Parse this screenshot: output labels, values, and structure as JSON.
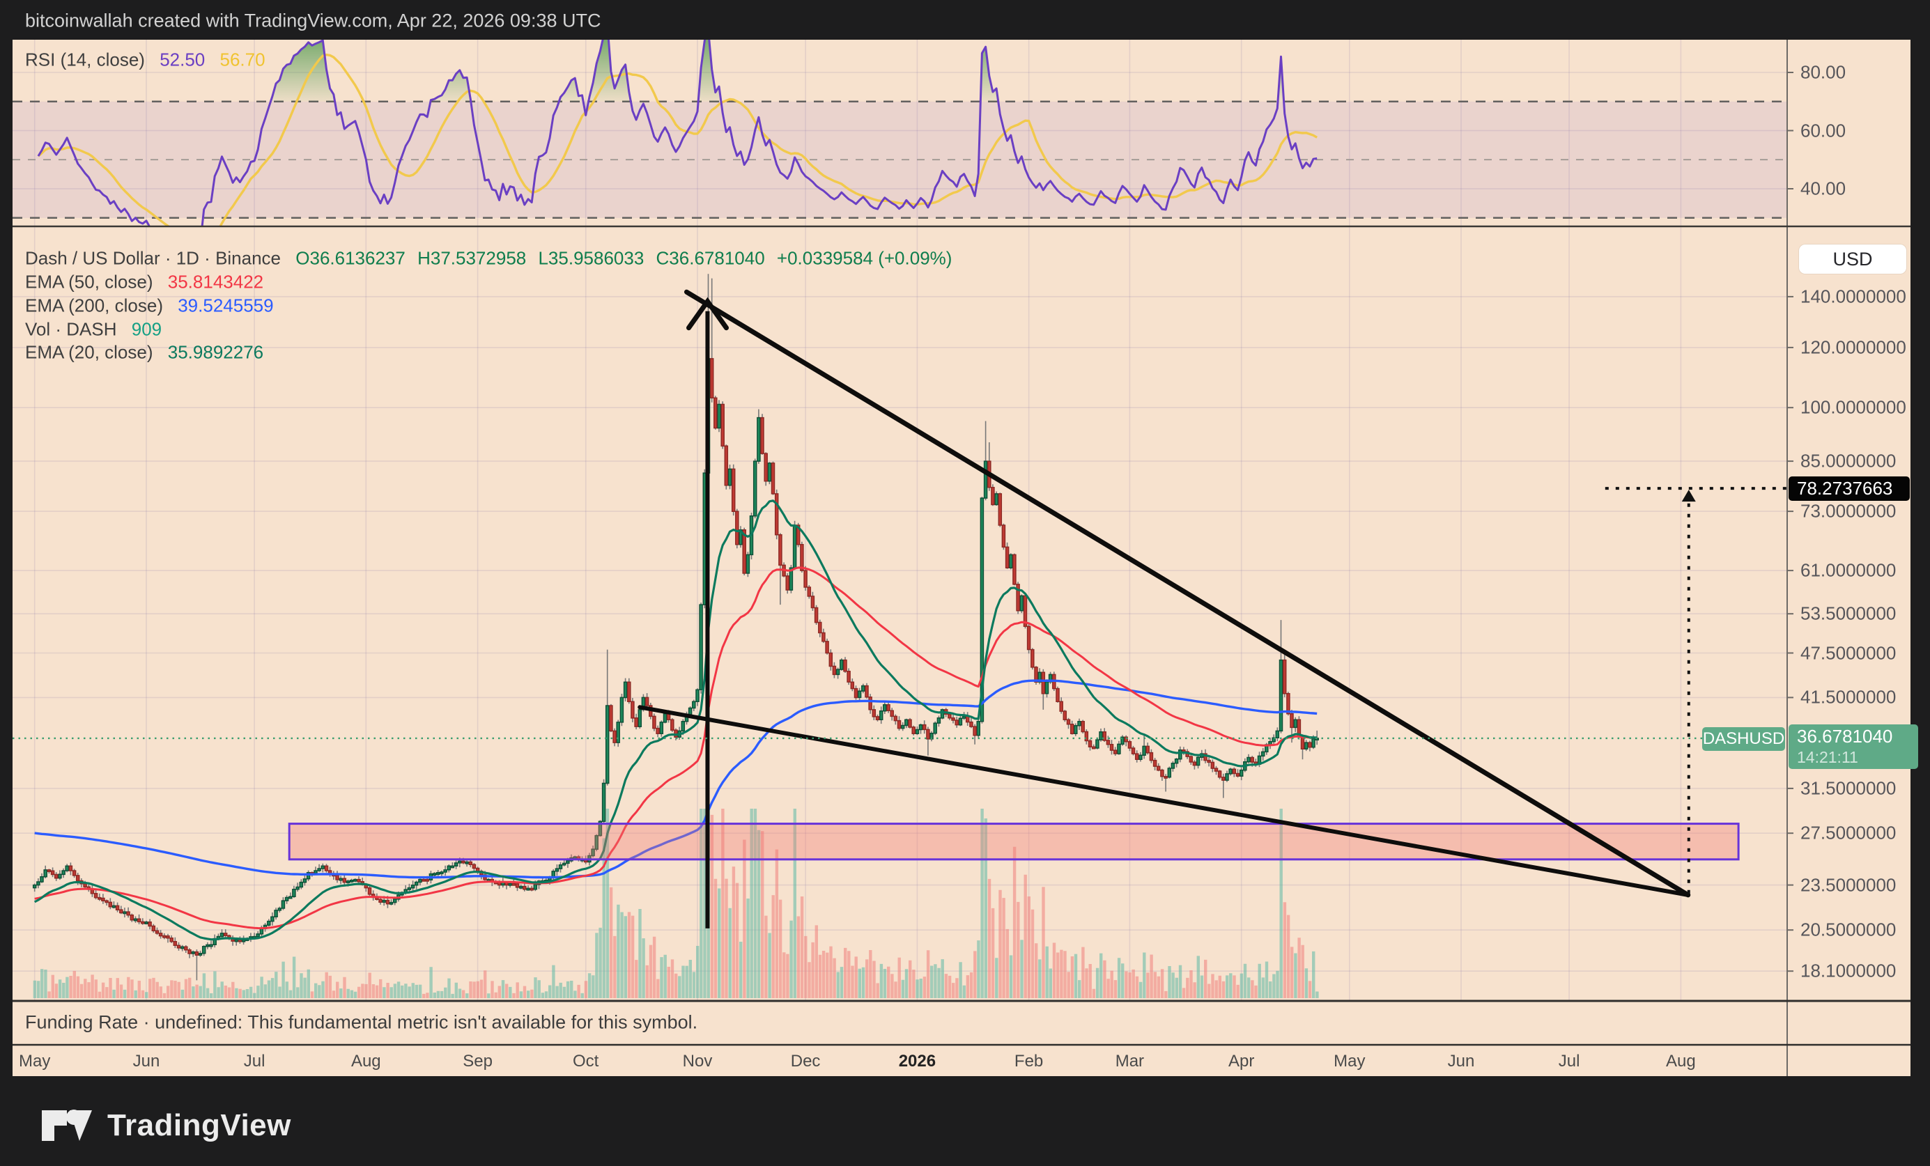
{
  "top_bar": {
    "text": "bitcoinwallah created with TradingView.com, Apr 22, 2026 09:38 UTC"
  },
  "rsi_panel": {
    "legend_label": "RSI (14, close)",
    "rsi_value": "52.50",
    "rsi_ma_value": "56.70",
    "axis_labels": [
      {
        "text": "80.00",
        "rsi": 80
      },
      {
        "text": "60.00",
        "rsi": 60
      },
      {
        "text": "40.00",
        "rsi": 40
      }
    ],
    "band": {
      "upper": 70,
      "middle": 50,
      "lower": 30
    }
  },
  "main_panel": {
    "title": "Dash / US Dollar · 1D · Binance",
    "ohlc": {
      "o": "O36.6136237",
      "h": "H37.5372958",
      "l": "L35.9586033",
      "c": "C36.6781040",
      "change": "+0.0339584 (+0.09%)"
    },
    "indicators": [
      {
        "label": "EMA (50, close)",
        "value": "35.8143422"
      },
      {
        "label": "EMA (200, close)",
        "value": "39.5245559"
      },
      {
        "label": "Vol · DASH",
        "value": "909"
      },
      {
        "label": "EMA (20, close)",
        "value": "35.9892276"
      }
    ],
    "currency_button": "USD",
    "price_axis": [
      {
        "text": "140.0000000",
        "price": 140
      },
      {
        "text": "120.0000000",
        "price": 120
      },
      {
        "text": "100.0000000",
        "price": 100
      },
      {
        "text": "85.0000000",
        "price": 85
      },
      {
        "text": "73.0000000",
        "price": 73
      },
      {
        "text": "61.0000000",
        "price": 61
      },
      {
        "text": "53.5000000",
        "price": 53.5
      },
      {
        "text": "47.5000000",
        "price": 47.5
      },
      {
        "text": "41.5000000",
        "price": 41.5
      },
      {
        "text": "31.5000000",
        "price": 31.5
      },
      {
        "text": "27.5000000",
        "price": 27.5
      },
      {
        "text": "23.5000000",
        "price": 23.5
      },
      {
        "text": "20.5000000",
        "price": 20.5
      },
      {
        "text": "18.1000000",
        "price": 18.1
      }
    ],
    "target_badge": {
      "text": "78.2737663",
      "price": 78.2737663
    },
    "price_badge": {
      "symbol": "DASHUSD",
      "price_text": "36.6781040",
      "countdown": "14:21:11",
      "price": 36.678104
    }
  },
  "funding_panel": {
    "text": "Funding Rate · undefined: This fundamental metric isn't available for this symbol."
  },
  "time_axis": {
    "labels": [
      {
        "text": "May",
        "day": 0
      },
      {
        "text": "Jun",
        "day": 31
      },
      {
        "text": "Jul",
        "day": 61
      },
      {
        "text": "Aug",
        "day": 92
      },
      {
        "text": "Sep",
        "day": 123
      },
      {
        "text": "Oct",
        "day": 153
      },
      {
        "text": "Nov",
        "day": 184
      },
      {
        "text": "Dec",
        "day": 214
      },
      {
        "text": "2026",
        "day": 245,
        "year": true
      },
      {
        "text": "Feb",
        "day": 276
      },
      {
        "text": "Mar",
        "day": 304
      },
      {
        "text": "Apr",
        "day": 335
      },
      {
        "text": "May",
        "day": 365
      },
      {
        "text": "Jun",
        "day": 396
      },
      {
        "text": "Jul",
        "day": 426
      },
      {
        "text": "Aug",
        "day": 457
      }
    ]
  },
  "footer": {
    "brand": "TradingView"
  },
  "colors": {
    "bg_dark": "#1d1d1e",
    "bg_chart": "#f7e2ce",
    "grid": "rgba(140,120,170,0.18)",
    "candle_up": "#1f8a5d",
    "candle_up_border": "#0e5138",
    "candle_down": "#c23b34",
    "candle_down_border": "#8e2a25",
    "wick": "#787878",
    "vol_up": "rgba(94,186,165,0.55)",
    "vol_down": "rgba(240,128,124,0.55)",
    "ema20": "#0c7a5e",
    "ema50": "#f23645",
    "ema200": "#2b5cff",
    "rsi_line": "#6a3fc3",
    "rsi_ma": "#f2c94c",
    "rsi_band": "rgba(106,63,195,0.09)",
    "overbought_fill": "rgba(76,160,96,0.5)",
    "ohlc_text": "#0f7d4d",
    "label_text": "#3f3f3f",
    "badge_green": "#5faa87",
    "badge_black": "#050505",
    "zone_fill": "rgba(242,120,116,0.35)",
    "zone_border": "#6733d9",
    "trend": "#0e0d0c",
    "price_dotted": "#3a9d6e"
  },
  "chart_data": {
    "type": "candlestick",
    "symbol": "DASHUSD",
    "exchange": "Binance",
    "timeframe": "1D",
    "scale": "log",
    "start_date": "2025-05-01",
    "current_price": 36.678104,
    "target_price": 78.2737663,
    "last_candle": {
      "o": 36.6136237,
      "h": 37.5372958,
      "l": 35.9586033,
      "c": 36.678104
    },
    "ema": {
      "ema20": 35.9892276,
      "ema50": 35.8143422,
      "ema200": 39.5245559
    },
    "rsi": {
      "value": 52.5,
      "ma": 56.7
    },
    "volume_last": 909,
    "first_open": 23.3,
    "support_zone": {
      "price_top": 28.3,
      "price_bottom": 25.4,
      "day_start": 70.7,
      "day_end": 473
    },
    "trendlines": {
      "upper": {
        "d1": 181,
        "p1": 142,
        "d2": 459,
        "p2": 22.8
      },
      "lower": {
        "d1": 168,
        "p1": 40.3,
        "d2": 459,
        "p2": 22.8
      }
    },
    "arrow_up": {
      "day": 186.8,
      "p_from": 20.6,
      "p_to": 138
    },
    "target_lines": {
      "vline_day": 459.2,
      "hline_day_start": 436,
      "p_from": 22.9,
      "p_to": 78.2737663
    },
    "waypoints": [
      [
        0,
        23.5,
        null,
        null
      ],
      [
        3,
        24.6,
        null,
        null
      ],
      [
        6,
        24.0,
        null,
        null
      ],
      [
        9,
        24.9,
        null,
        null
      ],
      [
        12,
        23.8,
        null,
        null
      ],
      [
        16,
        22.9,
        null,
        null
      ],
      [
        20,
        22.3,
        null,
        null
      ],
      [
        24,
        21.6,
        null,
        null
      ],
      [
        28,
        21.2,
        null,
        null
      ],
      [
        31,
        21.0,
        null,
        null
      ],
      [
        34,
        20.3,
        null,
        null
      ],
      [
        38,
        19.8,
        null,
        null
      ],
      [
        42,
        19.3,
        null,
        null
      ],
      [
        45,
        19.0,
        null,
        17.6
      ],
      [
        48,
        19.6,
        null,
        null
      ],
      [
        52,
        20.3,
        null,
        null
      ],
      [
        56,
        19.9,
        null,
        null
      ],
      [
        61,
        20.1,
        null,
        null
      ],
      [
        64,
        20.8,
        null,
        null
      ],
      [
        68,
        21.9,
        null,
        null
      ],
      [
        72,
        23.2,
        null,
        null
      ],
      [
        76,
        24.4,
        null,
        null
      ],
      [
        80,
        24.9,
        null,
        null
      ],
      [
        83,
        24.2,
        null,
        null
      ],
      [
        86,
        23.7,
        null,
        null
      ],
      [
        89,
        23.9,
        null,
        null
      ],
      [
        92,
        23.3,
        null,
        null
      ],
      [
        95,
        22.5,
        null,
        null
      ],
      [
        98,
        22.2,
        null,
        null
      ],
      [
        101,
        22.8,
        null,
        null
      ],
      [
        104,
        23.3,
        null,
        null
      ],
      [
        108,
        23.9,
        null,
        null
      ],
      [
        112,
        24.4,
        null,
        null
      ],
      [
        116,
        24.9,
        null,
        null
      ],
      [
        120,
        25.2,
        null,
        null
      ],
      [
        123,
        24.5,
        null,
        null
      ],
      [
        126,
        23.9,
        null,
        null
      ],
      [
        129,
        23.5,
        null,
        null
      ],
      [
        132,
        23.6,
        null,
        null
      ],
      [
        135,
        23.4,
        null,
        null
      ],
      [
        138,
        23.2,
        null,
        null
      ],
      [
        141,
        23.8,
        null,
        null
      ],
      [
        144,
        24.5,
        null,
        null
      ],
      [
        147,
        25.1,
        null,
        null
      ],
      [
        150,
        25.6,
        null,
        null
      ],
      [
        153,
        25.2,
        null,
        null
      ],
      [
        155,
        26.2,
        null,
        null
      ],
      [
        157,
        28.5,
        null,
        null
      ],
      [
        158,
        32.0,
        null,
        null
      ],
      [
        159,
        40.5,
        48,
        null
      ],
      [
        160,
        37.5,
        null,
        null
      ],
      [
        161,
        36.2,
        null,
        null
      ],
      [
        162,
        38.5,
        null,
        null
      ],
      [
        163,
        41.5,
        null,
        null
      ],
      [
        164,
        43.5,
        null,
        null
      ],
      [
        165,
        41.0,
        null,
        null
      ],
      [
        166,
        39.0,
        null,
        null
      ],
      [
        167,
        38.0,
        null,
        null
      ],
      [
        168,
        40.0,
        null,
        null
      ],
      [
        169,
        41.5,
        null,
        null
      ],
      [
        170,
        40.5,
        null,
        null
      ],
      [
        171,
        39.2,
        null,
        null
      ],
      [
        172,
        37.8,
        null,
        null
      ],
      [
        173,
        37.2,
        null,
        null
      ],
      [
        174,
        38.5,
        null,
        null
      ],
      [
        175,
        39.5,
        null,
        null
      ],
      [
        176,
        38.8,
        null,
        null
      ],
      [
        177,
        37.6,
        null,
        null
      ],
      [
        178,
        36.8,
        null,
        null
      ],
      [
        179,
        37.5,
        null,
        null
      ],
      [
        180,
        38.6,
        null,
        null
      ],
      [
        181,
        39.4,
        null,
        null
      ],
      [
        182,
        40.2,
        null,
        null
      ],
      [
        183,
        41.0,
        null,
        null
      ],
      [
        184,
        42.5,
        null,
        null
      ],
      [
        185,
        55.0,
        null,
        null
      ],
      [
        186,
        82.0,
        null,
        null
      ],
      [
        187,
        116.0,
        150,
        null
      ],
      [
        188,
        103.0,
        148,
        null
      ],
      [
        189,
        94.0,
        null,
        null
      ],
      [
        190,
        101.0,
        null,
        null
      ],
      [
        191,
        89.0,
        null,
        null
      ],
      [
        192,
        79.0,
        null,
        null
      ],
      [
        193,
        83.0,
        null,
        null
      ],
      [
        194,
        73.0,
        null,
        null
      ],
      [
        195,
        66.0,
        null,
        null
      ],
      [
        196,
        69.0,
        null,
        null
      ],
      [
        197,
        60.5,
        null,
        null
      ],
      [
        198,
        64.0,
        null,
        null
      ],
      [
        199,
        72.0,
        null,
        null
      ],
      [
        200,
        85.0,
        null,
        null
      ],
      [
        201,
        97.0,
        99.5,
        null
      ],
      [
        202,
        87.0,
        null,
        null
      ],
      [
        203,
        80.0,
        null,
        null
      ],
      [
        204,
        84.5,
        null,
        null
      ],
      [
        205,
        77.0,
        null,
        null
      ],
      [
        206,
        68.0,
        null,
        null
      ],
      [
        207,
        62.0,
        null,
        55.0
      ],
      [
        208,
        60.0,
        null,
        null
      ],
      [
        209,
        57.5,
        null,
        null
      ],
      [
        210,
        61.5,
        null,
        null
      ],
      [
        211,
        70.0,
        null,
        null
      ],
      [
        212,
        66.0,
        null,
        null
      ],
      [
        213,
        61.0,
        null,
        null
      ],
      [
        214,
        58.0,
        null,
        null
      ],
      [
        216,
        54.5,
        null,
        null
      ],
      [
        218,
        50.5,
        null,
        null
      ],
      [
        220,
        47.5,
        null,
        null
      ],
      [
        222,
        44.5,
        null,
        null
      ],
      [
        224,
        46.5,
        null,
        null
      ],
      [
        226,
        43.5,
        null,
        null
      ],
      [
        228,
        41.5,
        null,
        null
      ],
      [
        230,
        43.0,
        null,
        null
      ],
      [
        232,
        40.0,
        null,
        null
      ],
      [
        234,
        38.8,
        null,
        null
      ],
      [
        236,
        40.6,
        null,
        null
      ],
      [
        238,
        39.2,
        null,
        null
      ],
      [
        240,
        37.8,
        null,
        null
      ],
      [
        242,
        38.8,
        null,
        null
      ],
      [
        244,
        37.2,
        null,
        null
      ],
      [
        246,
        38.2,
        null,
        null
      ],
      [
        248,
        36.6,
        null,
        34.8
      ],
      [
        250,
        38.4,
        null,
        null
      ],
      [
        252,
        40.0,
        null,
        null
      ],
      [
        254,
        39.0,
        null,
        null
      ],
      [
        256,
        38.2,
        null,
        null
      ],
      [
        258,
        39.2,
        null,
        null
      ],
      [
        260,
        38.0,
        null,
        null
      ],
      [
        261,
        37.0,
        null,
        36.0
      ],
      [
        262,
        38.6,
        null,
        null
      ],
      [
        263,
        76.0,
        null,
        null
      ],
      [
        264,
        85.0,
        96.0,
        null
      ],
      [
        265,
        78.5,
        90.0,
        null
      ],
      [
        266,
        74.5,
        null,
        null
      ],
      [
        267,
        77.0,
        null,
        null
      ],
      [
        268,
        70.0,
        null,
        null
      ],
      [
        269,
        65.5,
        null,
        null
      ],
      [
        270,
        61.5,
        null,
        null
      ],
      [
        271,
        64.0,
        null,
        null
      ],
      [
        272,
        58.5,
        null,
        null
      ],
      [
        273,
        54.0,
        null,
        null
      ],
      [
        274,
        56.5,
        null,
        null
      ],
      [
        275,
        51.5,
        null,
        null
      ],
      [
        276,
        48.0,
        null,
        null
      ],
      [
        277,
        45.5,
        null,
        null
      ],
      [
        278,
        43.5,
        null,
        null
      ],
      [
        279,
        44.8,
        null,
        null
      ],
      [
        280,
        42.0,
        null,
        40.0
      ],
      [
        282,
        44.5,
        null,
        null
      ],
      [
        284,
        41.0,
        null,
        null
      ],
      [
        286,
        38.8,
        null,
        null
      ],
      [
        288,
        37.2,
        null,
        null
      ],
      [
        290,
        38.6,
        null,
        null
      ],
      [
        292,
        36.4,
        null,
        null
      ],
      [
        294,
        35.6,
        null,
        null
      ],
      [
        296,
        37.4,
        null,
        null
      ],
      [
        298,
        36.0,
        null,
        null
      ],
      [
        300,
        35.0,
        null,
        null
      ],
      [
        302,
        36.8,
        null,
        null
      ],
      [
        304,
        35.6,
        null,
        null
      ],
      [
        306,
        34.4,
        null,
        null
      ],
      [
        308,
        35.8,
        37.2,
        null
      ],
      [
        310,
        34.3,
        null,
        null
      ],
      [
        312,
        33.3,
        null,
        null
      ],
      [
        314,
        32.6,
        null,
        31.2
      ],
      [
        316,
        34.0,
        null,
        null
      ],
      [
        318,
        35.4,
        null,
        null
      ],
      [
        320,
        34.7,
        null,
        null
      ],
      [
        322,
        33.8,
        null,
        null
      ],
      [
        324,
        35.0,
        null,
        null
      ],
      [
        326,
        34.1,
        null,
        null
      ],
      [
        328,
        33.2,
        null,
        null
      ],
      [
        330,
        32.3,
        null,
        30.6
      ],
      [
        332,
        33.4,
        null,
        null
      ],
      [
        334,
        32.7,
        null,
        null
      ],
      [
        335,
        33.3,
        null,
        null
      ],
      [
        337,
        34.6,
        null,
        null
      ],
      [
        339,
        33.9,
        null,
        null
      ],
      [
        341,
        35.2,
        null,
        null
      ],
      [
        343,
        36.3,
        null,
        null
      ],
      [
        345,
        37.5,
        null,
        null
      ],
      [
        346,
        46.5,
        52.5,
        null
      ],
      [
        347,
        42.0,
        48.0,
        null
      ],
      [
        348,
        39.5,
        null,
        null
      ],
      [
        349,
        37.9,
        null,
        36.2
      ],
      [
        350,
        38.8,
        null,
        null
      ],
      [
        351,
        36.9,
        null,
        null
      ],
      [
        352,
        35.5,
        null,
        34.4
      ],
      [
        353,
        36.2,
        null,
        null
      ],
      [
        354,
        35.7,
        null,
        null
      ],
      [
        355,
        36.6136237,
        null,
        null
      ],
      [
        356,
        36.678104,
        37.5372958,
        35.9586033
      ]
    ]
  }
}
